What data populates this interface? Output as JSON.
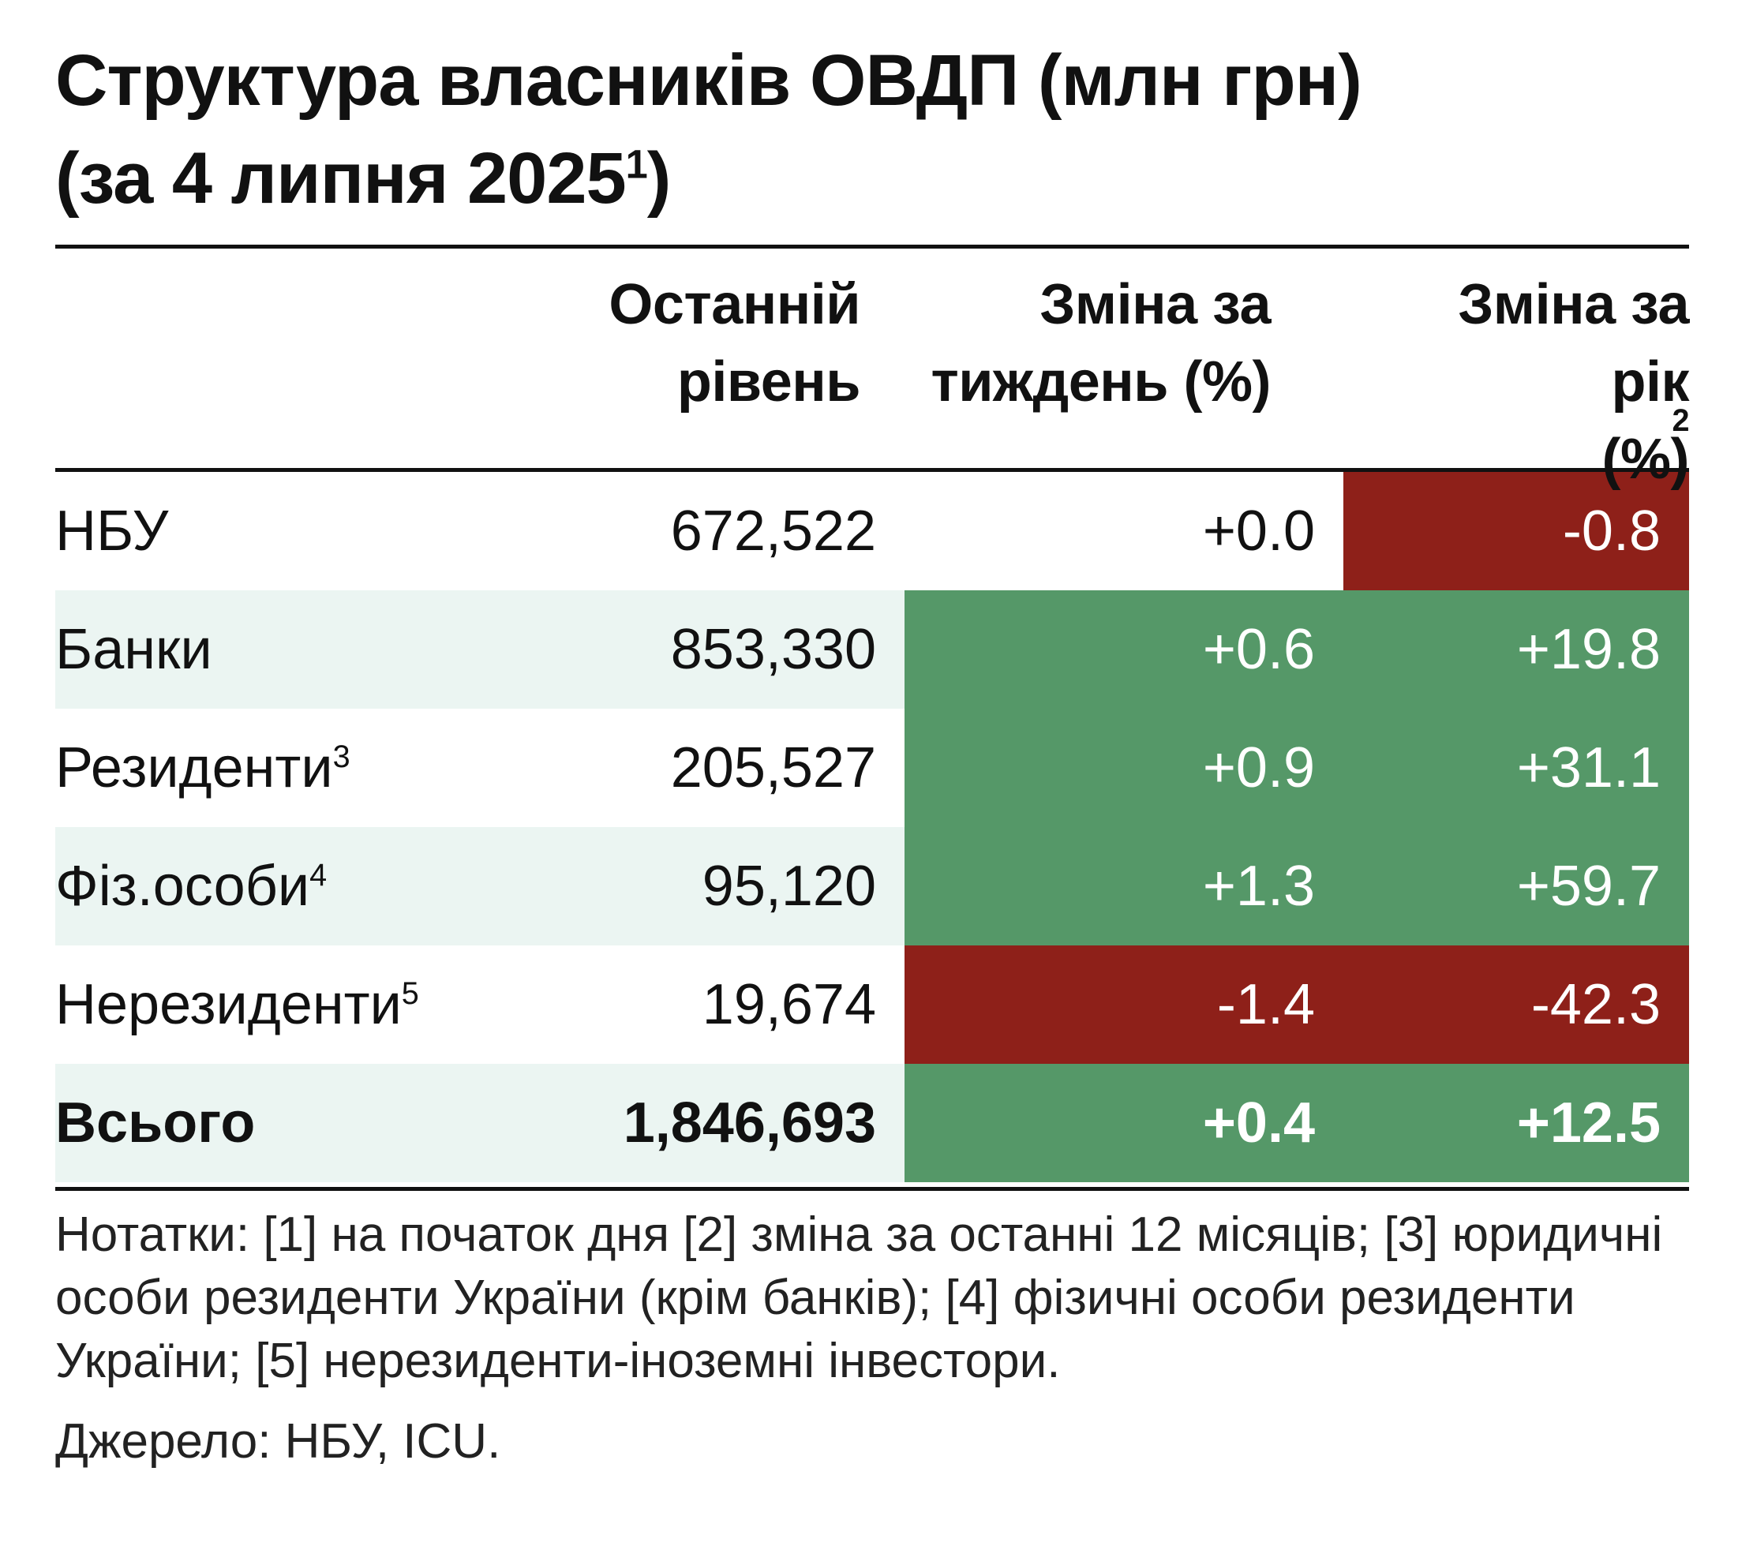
{
  "title": {
    "line1": "Структура власників ОВДП (млн грн)",
    "line2_prefix": "(за 4 липня 2025",
    "line2_sup": "1",
    "line2_suffix": ")"
  },
  "columns": {
    "level": [
      "Останній",
      "рівень"
    ],
    "week": [
      "Зміна за",
      "тиждень (%)"
    ],
    "year_line1": "Зміна за",
    "year_line2_prefix": "рік",
    "year_line2_sup": "2",
    "year_line2_suffix": " (%)"
  },
  "chart_data": {
    "type": "table",
    "title": "Структура власників ОВДП (млн грн) (за 4 липня 2025)",
    "headers": [
      "",
      "Останній рівень",
      "Зміна за тиждень (%)",
      "Зміна за рік (%)"
    ],
    "rows": [
      {
        "label": "НБУ",
        "sup": "",
        "level": "672,522",
        "week": "+0.0",
        "year": "-0.8",
        "shade": false,
        "bold": false
      },
      {
        "label": "Банки",
        "sup": "",
        "level": "853,330",
        "week": "+0.6",
        "year": "+19.8",
        "shade": true,
        "bold": false
      },
      {
        "label": "Резиденти",
        "sup": "3",
        "level": "205,527",
        "week": "+0.9",
        "year": "+31.1",
        "shade": false,
        "bold": false
      },
      {
        "label": "Фіз.особи",
        "sup": "4",
        "level": "95,120",
        "week": "+1.3",
        "year": "+59.7",
        "shade": true,
        "bold": false
      },
      {
        "label": "Нерезиденти",
        "sup": "5",
        "level": "19,674",
        "week": "-1.4",
        "year": "-42.3",
        "shade": false,
        "bold": false
      },
      {
        "label": "Всього",
        "sup": "",
        "level": "1,846,693",
        "week": "+0.4",
        "year": "+12.5",
        "shade": true,
        "bold": true
      }
    ]
  },
  "colors": {
    "positive": "#559868",
    "negative": "#8e2019",
    "shade": "#ebf5f2"
  },
  "notes": "Нотатки: [1] на початок дня [2] зміна за останні 12 місяців; [3] юридичні особи  резиденти України (крім банків); [4] фізичні особи резиденти України; [5] нерезиденти-іноземні інвестори.",
  "source": "Джерело: НБУ, ICU."
}
